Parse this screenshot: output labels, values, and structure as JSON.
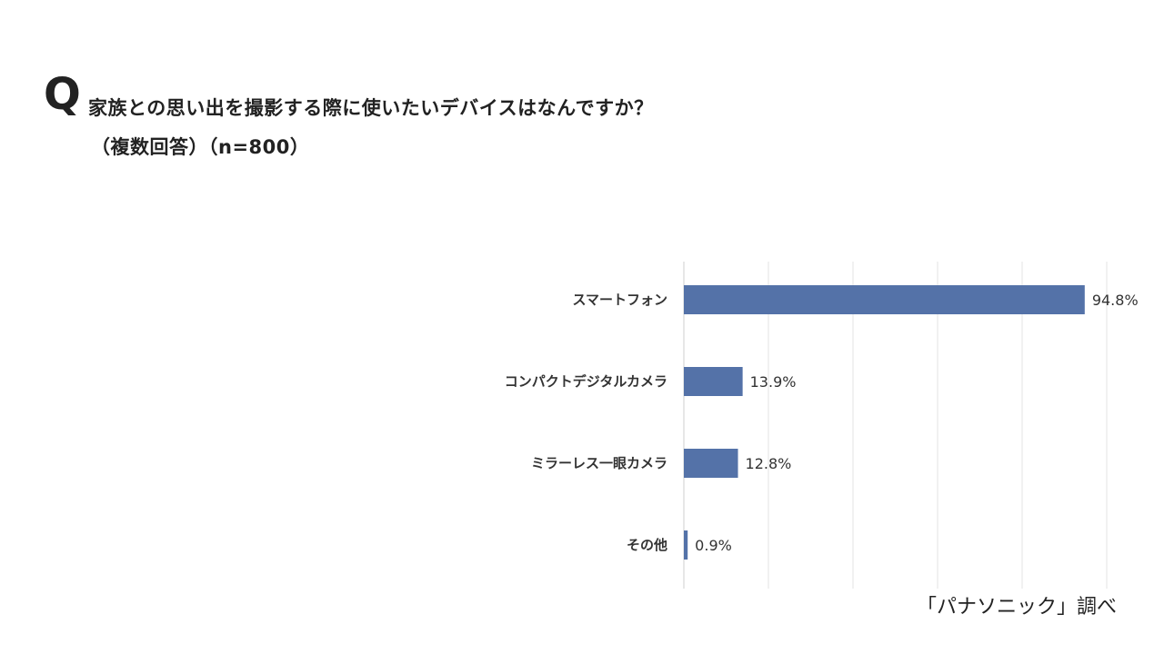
{
  "header": {
    "q_mark": "Q",
    "title": "家族との思い出を撮影する際に使いたいデバイスはなんですか？",
    "subtitle": "（複数回答）（n=800）"
  },
  "chart_data": {
    "type": "bar",
    "orientation": "horizontal",
    "categories": [
      "スマートフォン",
      "コンパクトデジタルカメラ",
      "ミラーレス一眼カメラ",
      "その他"
    ],
    "values": [
      94.8,
      13.9,
      12.8,
      0.9
    ],
    "value_labels": [
      "94.8%",
      "13.9%",
      "12.8%",
      "0.9%"
    ],
    "xlim": [
      0,
      100
    ],
    "grid": true,
    "bar_color": "#5472a8",
    "grid_color": "#e3e3e3"
  },
  "source": "「パナソニック」調べ"
}
